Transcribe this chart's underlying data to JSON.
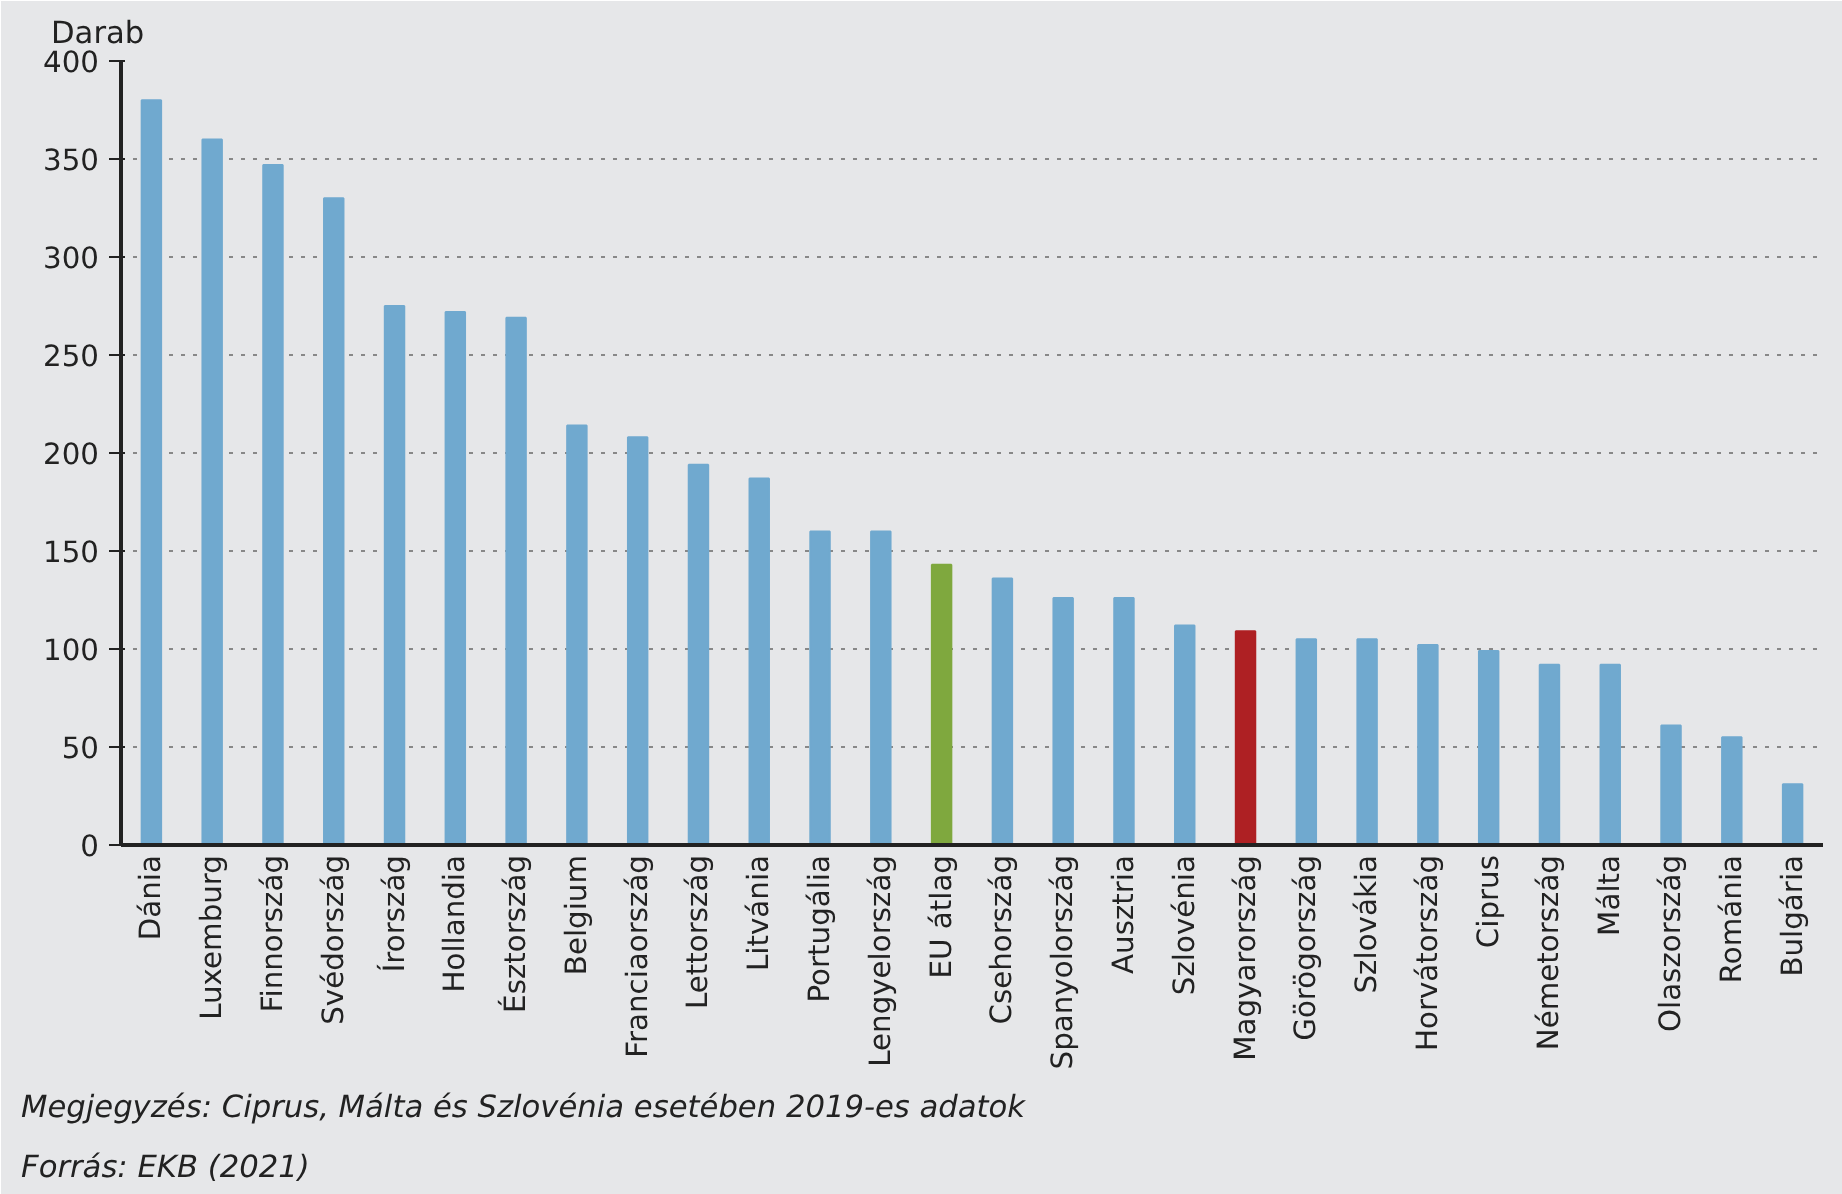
{
  "chart_data": {
    "type": "bar",
    "ylabel": "Darab",
    "categories": [
      "Dánia",
      "Luxemburg",
      "Finnország",
      "Svédország",
      "Írország",
      "Hollandia",
      "Észtország",
      "Belgium",
      "Franciaország",
      "Lettország",
      "Litvánia",
      "Portugália",
      "Lengyelország",
      "EU átlag",
      "Csehország",
      "Spanyolország",
      "Ausztria",
      "Szlovénia",
      "Magyarország",
      "Görögország",
      "Szlovákia",
      "Horvátország",
      "Ciprus",
      "Németország",
      "Málta",
      "Olaszország",
      "Románia",
      "Bulgária"
    ],
    "values": [
      380,
      360,
      347,
      330,
      275,
      272,
      269,
      214,
      208,
      194,
      187,
      160,
      160,
      143,
      136,
      126,
      126,
      112,
      109,
      105,
      105,
      102,
      99,
      92,
      92,
      61,
      55,
      31
    ],
    "colors": [
      "#70a9cf",
      "#70a9cf",
      "#70a9cf",
      "#70a9cf",
      "#70a9cf",
      "#70a9cf",
      "#70a9cf",
      "#70a9cf",
      "#70a9cf",
      "#70a9cf",
      "#70a9cf",
      "#70a9cf",
      "#70a9cf",
      "#7fa83e",
      "#70a9cf",
      "#70a9cf",
      "#70a9cf",
      "#70a9cf",
      "#ae2023",
      "#70a9cf",
      "#70a9cf",
      "#70a9cf",
      "#70a9cf",
      "#70a9cf",
      "#70a9cf",
      "#70a9cf",
      "#70a9cf",
      "#70a9cf"
    ],
    "ylim": [
      0,
      400
    ],
    "yticks": [
      0,
      50,
      100,
      150,
      200,
      250,
      300,
      350,
      400
    ],
    "grid": "y",
    "annotations": [
      "Megjegyzés: Ciprus, Málta és Szlovénia esetében 2019-es adatok",
      "Forrás: EKB (2021)"
    ]
  }
}
